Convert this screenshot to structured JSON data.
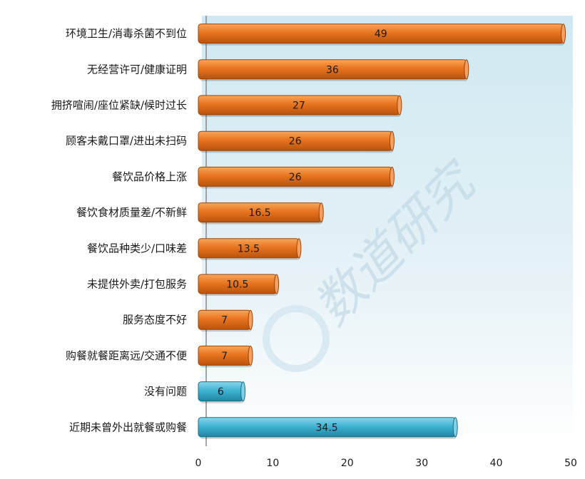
{
  "chart_data": {
    "type": "bar",
    "orientation": "horizontal",
    "categories": [
      "环境卫生/消毒杀菌不到位",
      "无经营许可/健康证明",
      "拥挤喧闹/座位紧缺/候时过长",
      "顾客未戴口罩/进出未扫码",
      "餐饮品价格上涨",
      "餐饮食材质量差/不新鲜",
      "餐饮品种类少/口味差",
      "未提供外卖/打包服务",
      "服务态度不好",
      "购餐就餐距离远/交通不便",
      "没有问题",
      "近期未曾外出就餐或购餐"
    ],
    "values": [
      49,
      36,
      27,
      26,
      26,
      16.5,
      13.5,
      10.5,
      7,
      7,
      6,
      34.5
    ],
    "value_labels": [
      "49",
      "36",
      "27",
      "26",
      "26",
      "16.5",
      "13.5",
      "10.5",
      "7",
      "7",
      "6",
      "34.5"
    ],
    "bar_colors": [
      "#e8741f",
      "#e8741f",
      "#e8741f",
      "#e8741f",
      "#e8741f",
      "#e8741f",
      "#e8741f",
      "#e8741f",
      "#e8741f",
      "#e8741f",
      "#3fb3d2",
      "#3fb3d2"
    ],
    "xlim": [
      0,
      50
    ],
    "xticks": [
      "0",
      "10",
      "20",
      "30",
      "40",
      "50"
    ],
    "grid": false,
    "legend": "none",
    "title": "",
    "xlabel": "",
    "ylabel": "",
    "watermark": "数道研究"
  }
}
